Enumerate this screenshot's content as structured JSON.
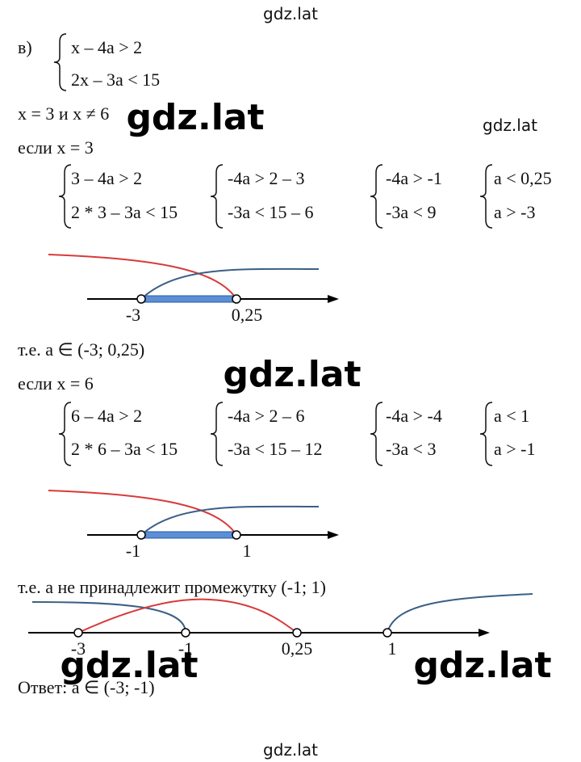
{
  "watermarks": [
    "gdz.lat",
    "gdz.lat",
    "gdz.lat",
    "gdz.lat",
    "gdz.lat",
    "gdz.lat",
    "gdz.lat"
  ],
  "part": "в)",
  "system": [
    "x – 4a > 2",
    "2x – 3a < 15"
  ],
  "note": "x = 3 и x ≠ 6",
  "case1": {
    "heading": "если x = 3",
    "systems": [
      [
        "3 – 4a > 2",
        "2 * 3 – 3a < 15"
      ],
      [
        "-4a > 2 – 3",
        "-3a < 15 – 6"
      ],
      [
        "-4a > -1",
        "-3a < 9"
      ],
      [
        "a < 0,25",
        "a > -3"
      ]
    ],
    "axis_labels": [
      "-3",
      "0,25"
    ],
    "result": "т.е. a ∈ (-3; 0,25)"
  },
  "case2": {
    "heading": "если x = 6",
    "systems": [
      [
        "6 – 4a > 2",
        "2 * 6 – 3a < 15"
      ],
      [
        "-4a > 2 – 6",
        "-3a < 15 – 12"
      ],
      [
        "-4a > -4",
        "-3a < 3"
      ],
      [
        "a < 1",
        "a > -1"
      ]
    ],
    "axis_labels": [
      "-1",
      "1"
    ],
    "result": "т.е. a не принадлежит промежутку (-1; 1)"
  },
  "final_axis_labels": [
    "-3",
    "-1",
    "0,25",
    "1"
  ],
  "answer": "Ответ: a ∈ (-3; -1)"
}
